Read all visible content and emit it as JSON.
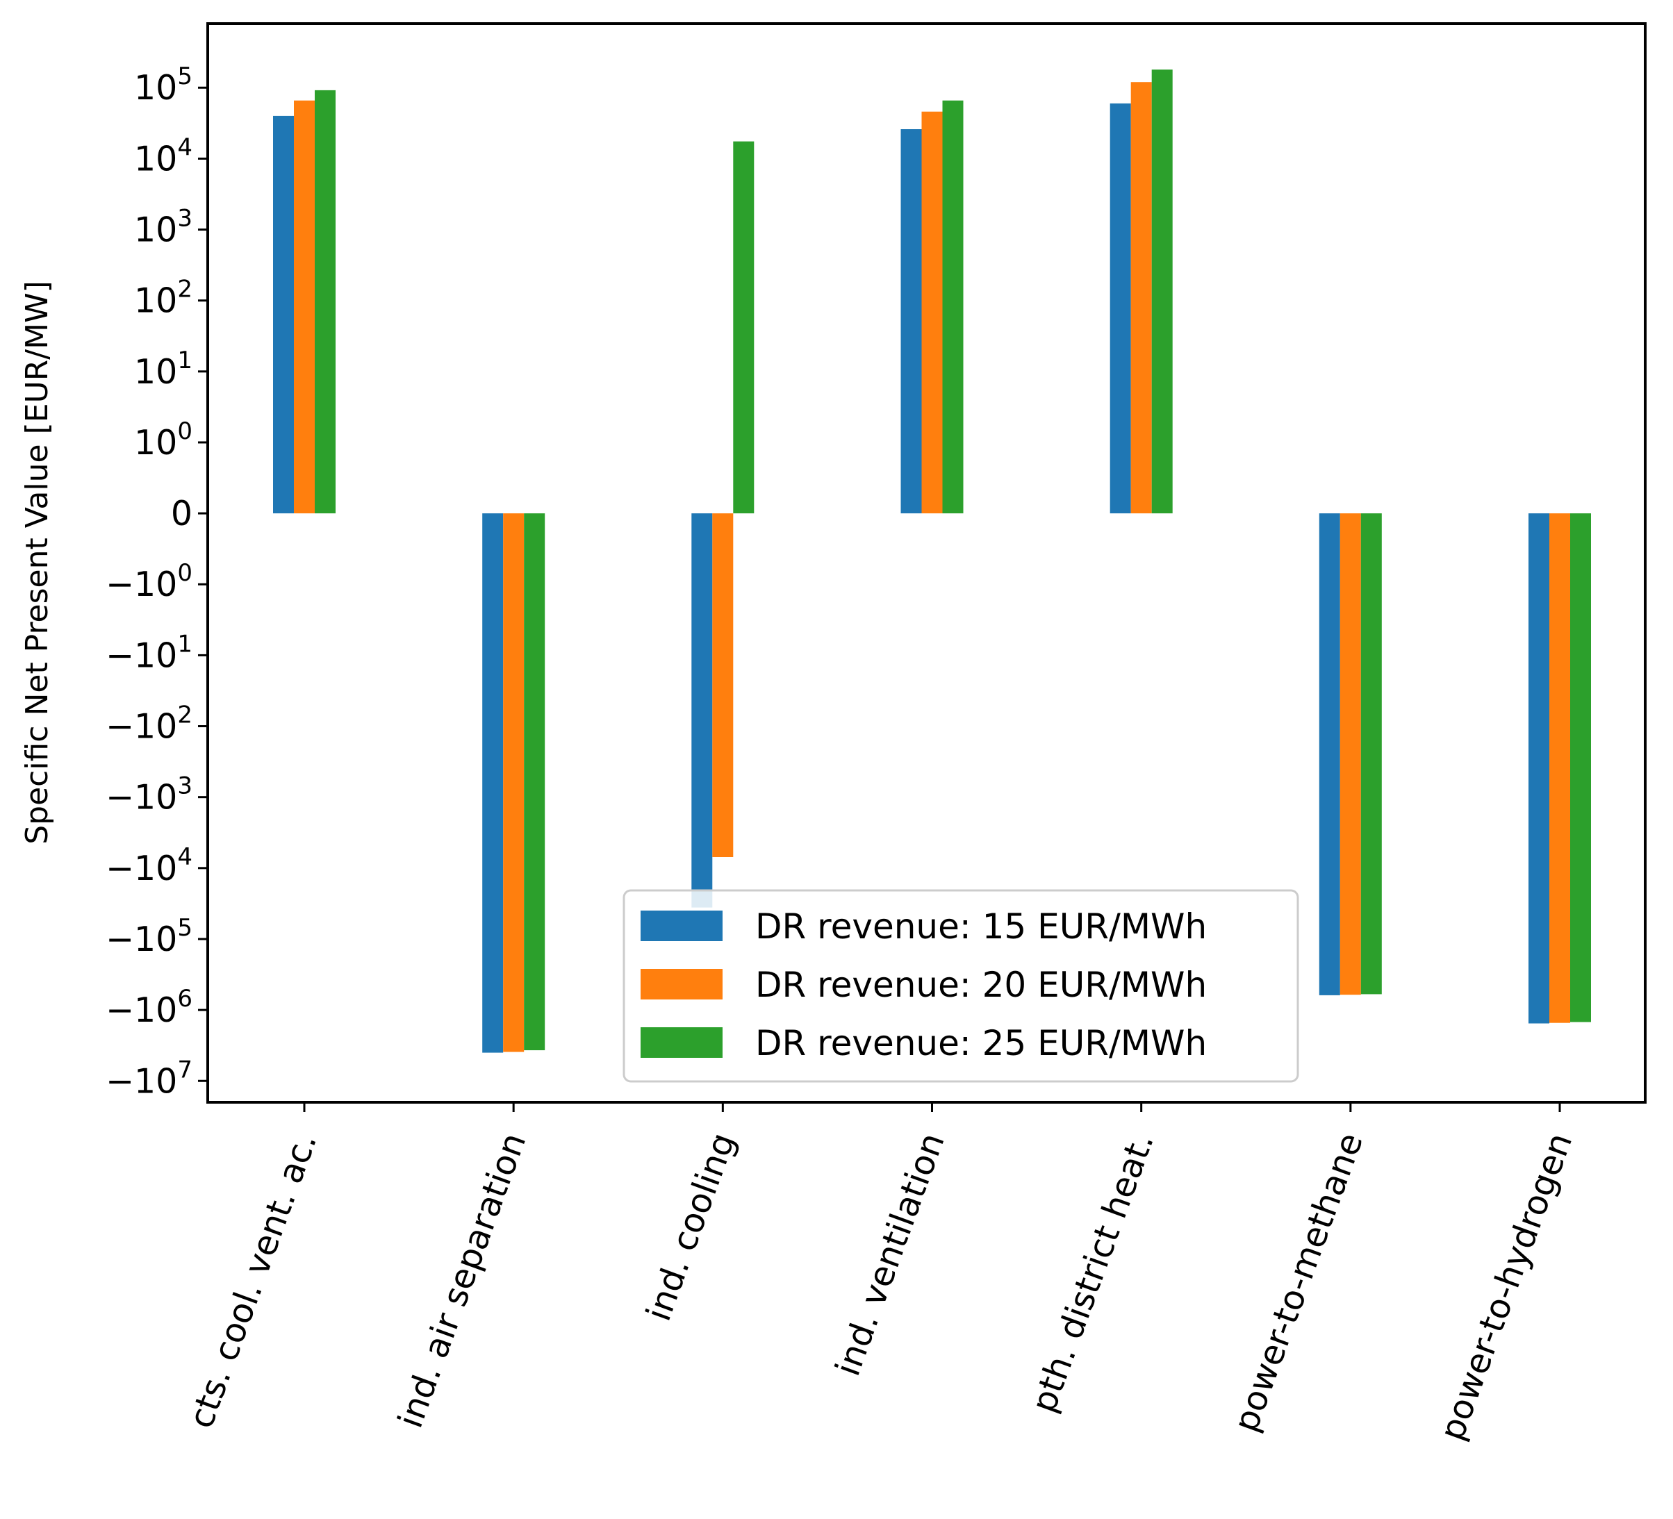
{
  "chart_data": {
    "type": "bar",
    "title": "",
    "xlabel": "",
    "ylabel": "Specific Net Present Value [EUR/MW]",
    "yscale": "symlog",
    "linthresh": 1,
    "ylim": [
      -20000000,
      800000
    ],
    "grid": false,
    "legend_position": "lower-center",
    "categories": [
      "cts. cool. vent. ac.",
      "ind. air separation",
      "ind. cooling",
      "ind. ventilation",
      "pth. district heat.",
      "power-to-methane",
      "power-to-hydrogen"
    ],
    "series": [
      {
        "name": "DR revenue: 15 EUR/MWh",
        "color": "#1f77b4",
        "values": [
          40000,
          -4000000,
          -36000,
          26000,
          60000,
          -620000,
          -1550000
        ]
      },
      {
        "name": "DR revenue: 20 EUR/MWh",
        "color": "#ff7f0e",
        "values": [
          66000,
          -3900000,
          -7000,
          46000,
          120000,
          -610000,
          -1520000
        ]
      },
      {
        "name": "DR revenue: 25 EUR/MWh",
        "color": "#2ca02c",
        "values": [
          92000,
          -3700000,
          17500,
          66000,
          180000,
          -600000,
          -1480000
        ]
      }
    ],
    "y_ticks": [
      {
        "value": 100000,
        "base": "10",
        "exp": "5"
      },
      {
        "value": 10000,
        "base": "10",
        "exp": "4"
      },
      {
        "value": 1000,
        "base": "10",
        "exp": "3"
      },
      {
        "value": 100,
        "base": "10",
        "exp": "2"
      },
      {
        "value": 10,
        "base": "10",
        "exp": "1"
      },
      {
        "value": 1,
        "base": "10",
        "exp": "0"
      },
      {
        "value": 0,
        "base": "0",
        "exp": ""
      },
      {
        "value": -1,
        "base": "−10",
        "exp": "0"
      },
      {
        "value": -10,
        "base": "−10",
        "exp": "1"
      },
      {
        "value": -100,
        "base": "−10",
        "exp": "2"
      },
      {
        "value": -1000,
        "base": "−10",
        "exp": "3"
      },
      {
        "value": -10000,
        "base": "−10",
        "exp": "4"
      },
      {
        "value": -100000,
        "base": "−10",
        "exp": "5"
      },
      {
        "value": -1000000,
        "base": "−10",
        "exp": "6"
      },
      {
        "value": -10000000,
        "base": "−10",
        "exp": "7"
      }
    ]
  }
}
